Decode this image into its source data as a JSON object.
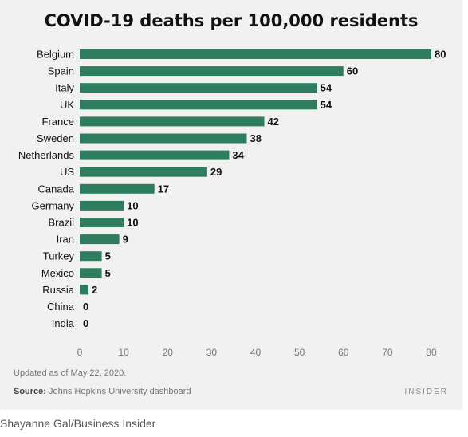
{
  "chart_data": {
    "type": "bar",
    "orientation": "horizontal",
    "title": "COVID-19 deaths per 100,000 residents",
    "categories": [
      "Belgium",
      "Spain",
      "Italy",
      "UK",
      "France",
      "Sweden",
      "Netherlands",
      "US",
      "Canada",
      "Germany",
      "Brazil",
      "Iran",
      "Turkey",
      "Mexico",
      "Russia",
      "China",
      "India"
    ],
    "values": [
      80,
      60,
      54,
      54,
      42,
      38,
      34,
      29,
      17,
      10,
      10,
      9,
      5,
      5,
      2,
      0,
      0
    ],
    "xlim": [
      0,
      80
    ],
    "xticks": [
      0,
      10,
      20,
      30,
      40,
      50,
      60,
      70,
      80
    ],
    "bar_color": "#2e7d5e",
    "grid": false,
    "legend": "none"
  },
  "footer": {
    "updated": "Updated as of May 22, 2020.",
    "source_label": "Source:",
    "source_text": " Johns Hopkins University dashboard",
    "brand": "INSIDER"
  },
  "credit": "Shayanne Gal/Business Insider"
}
